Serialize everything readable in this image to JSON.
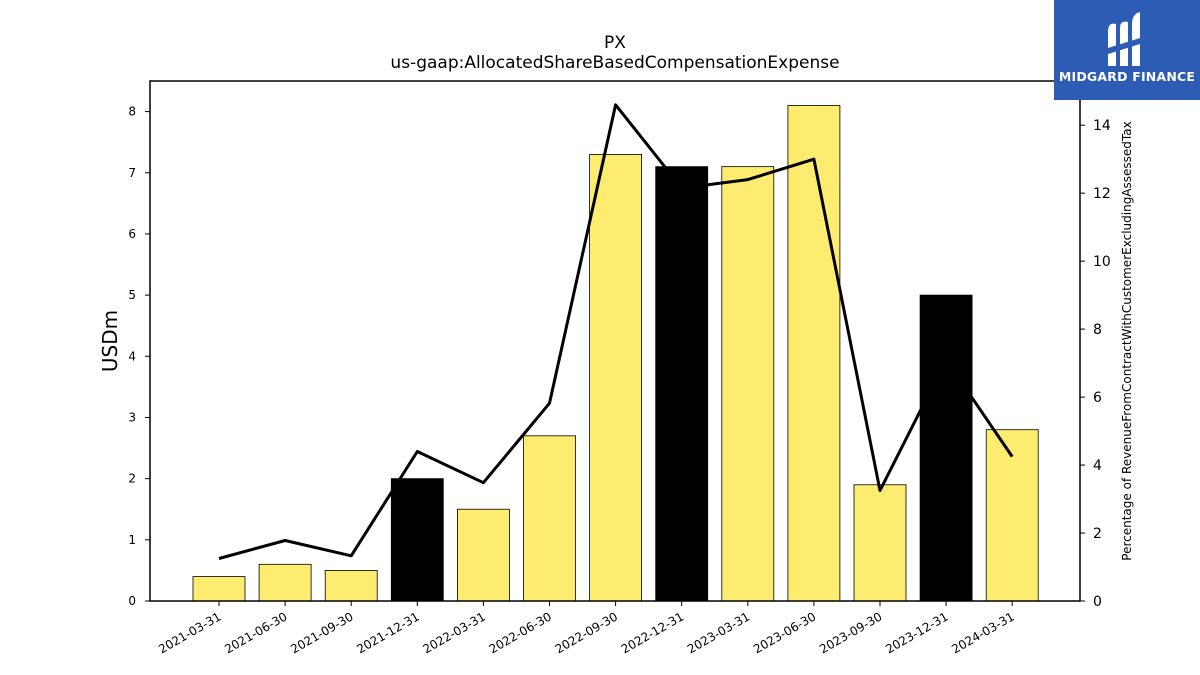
{
  "chart_data": {
    "type": "bar",
    "title": "PX",
    "subtitle": "us-gaap:AllocatedShareBasedCompensationExpense",
    "ylabel": "USDm",
    "y2label": "Percentage of RevenueFromContractWithCustomerExcludingAssessedTax",
    "categories": [
      "2021-03-31",
      "2021-06-30",
      "2021-09-30",
      "2021-12-31",
      "2022-03-31",
      "2022-06-30",
      "2022-09-30",
      "2022-12-31",
      "2023-03-31",
      "2023-06-30",
      "2023-09-30",
      "2023-12-31",
      "2024-03-31"
    ],
    "values": [
      0.4,
      0.6,
      0.5,
      2.0,
      1.5,
      2.7,
      7.3,
      7.1,
      7.1,
      8.1,
      1.9,
      5.0,
      2.8
    ],
    "highlight": [
      false,
      false,
      false,
      true,
      false,
      false,
      false,
      true,
      false,
      false,
      false,
      true,
      false
    ],
    "line_values": [
      1.25,
      1.78,
      1.33,
      4.4,
      3.48,
      5.82,
      14.6,
      12.15,
      12.4,
      13.0,
      3.25,
      7.1,
      4.25
    ],
    "ylim": [
      0,
      8.5
    ],
    "y2lim": [
      0,
      15.3
    ],
    "yticks": [
      0,
      1,
      2,
      3,
      4,
      5,
      6,
      7,
      8
    ],
    "y2ticks": [
      0,
      2,
      4,
      6,
      8,
      10,
      12,
      14
    ],
    "colors": {
      "bar": "#fdec6f",
      "highlight": "#000000",
      "line": "#000000"
    }
  },
  "logo": {
    "text": "MIDGARD FINANCE",
    "bg": "#2d5cb5"
  }
}
